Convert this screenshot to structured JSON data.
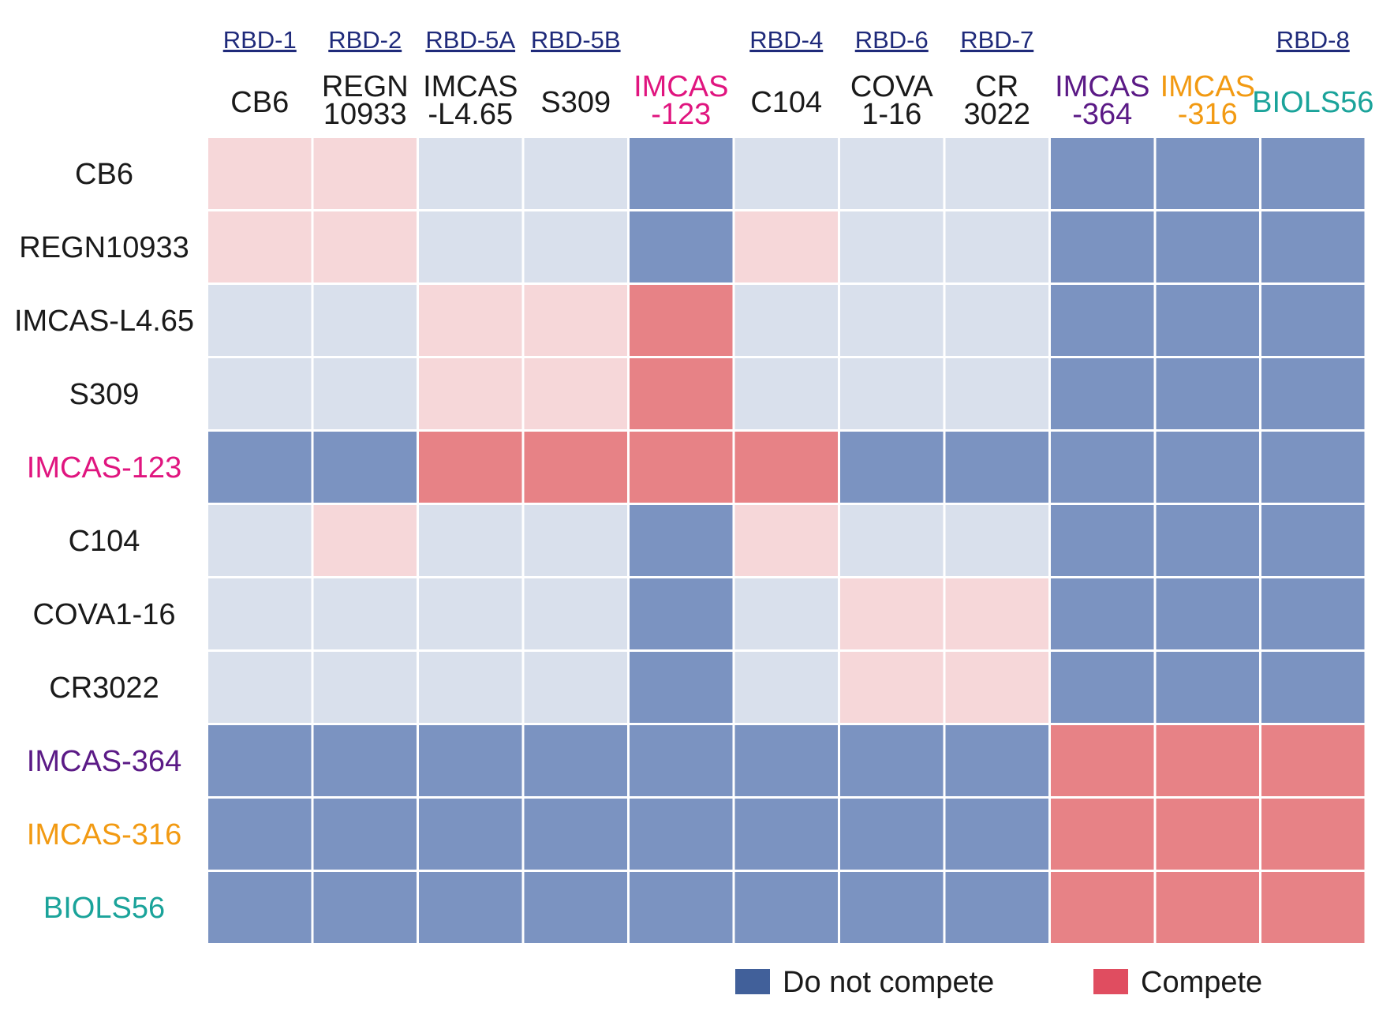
{
  "chart_data": {
    "type": "heatmap",
    "title": "",
    "xlabel": "",
    "ylabel": "",
    "epitopes": [
      {
        "label": "RBD-1",
        "column": 0
      },
      {
        "label": "RBD-2",
        "column": 1
      },
      {
        "label": "RBD-5A",
        "column": 2
      },
      {
        "label": "RBD-5B",
        "column": 3
      },
      {
        "label": "RBD-4",
        "column": 5
      },
      {
        "label": "RBD-6",
        "column": 6
      },
      {
        "label": "RBD-7",
        "column": 7
      },
      {
        "label": "RBD-8",
        "column": 10
      }
    ],
    "columns": [
      {
        "lines": [
          "CB6"
        ],
        "color": "#1a1a1a"
      },
      {
        "lines": [
          "REGN",
          "10933"
        ],
        "color": "#1a1a1a"
      },
      {
        "lines": [
          "IMCAS",
          "-L4.65"
        ],
        "color": "#1a1a1a"
      },
      {
        "lines": [
          "S309"
        ],
        "color": "#1a1a1a"
      },
      {
        "lines": [
          "IMCAS",
          "-123"
        ],
        "color": "#e0157f"
      },
      {
        "lines": [
          "C104"
        ],
        "color": "#1a1a1a"
      },
      {
        "lines": [
          "COVA",
          "1-16"
        ],
        "color": "#1a1a1a"
      },
      {
        "lines": [
          "CR",
          "3022"
        ],
        "color": "#1a1a1a"
      },
      {
        "lines": [
          "IMCAS",
          "-364"
        ],
        "color": "#5b1a86"
      },
      {
        "lines": [
          "IMCAS",
          "-316"
        ],
        "color": "#f29a12"
      },
      {
        "lines": [
          "BIOLS56"
        ],
        "color": "#1aa39a"
      }
    ],
    "rows": [
      {
        "label": "CB6",
        "color": "#1a1a1a"
      },
      {
        "label": "REGN10933",
        "color": "#1a1a1a"
      },
      {
        "label": "IMCAS-L4.65",
        "color": "#1a1a1a"
      },
      {
        "label": "S309",
        "color": "#1a1a1a"
      },
      {
        "label": "IMCAS-123",
        "color": "#e0157f"
      },
      {
        "label": "C104",
        "color": "#1a1a1a"
      },
      {
        "label": "COVA1-16",
        "color": "#1a1a1a"
      },
      {
        "label": "CR3022",
        "color": "#1a1a1a"
      },
      {
        "label": "IMCAS-364",
        "color": "#5b1a86"
      },
      {
        "label": "IMCAS-316",
        "color": "#f29a12"
      },
      {
        "label": "BIOLS56",
        "color": "#1aa39a"
      }
    ],
    "cell_values": [
      [
        "lc",
        "lc",
        "ln",
        "ln",
        "dn",
        "ln",
        "ln",
        "ln",
        "dn",
        "dn",
        "dn"
      ],
      [
        "lc",
        "lc",
        "ln",
        "ln",
        "dn",
        "lc",
        "ln",
        "ln",
        "dn",
        "dn",
        "dn"
      ],
      [
        "ln",
        "ln",
        "lc",
        "lc",
        "dc",
        "ln",
        "ln",
        "ln",
        "dn",
        "dn",
        "dn"
      ],
      [
        "ln",
        "ln",
        "lc",
        "lc",
        "dc",
        "ln",
        "ln",
        "ln",
        "dn",
        "dn",
        "dn"
      ],
      [
        "dn",
        "dn",
        "dc",
        "dc",
        "dc",
        "dc",
        "dn",
        "dn",
        "dn",
        "dn",
        "dn"
      ],
      [
        "ln",
        "lc",
        "ln",
        "ln",
        "dn",
        "lc",
        "ln",
        "ln",
        "dn",
        "dn",
        "dn"
      ],
      [
        "ln",
        "ln",
        "ln",
        "ln",
        "dn",
        "ln",
        "lc",
        "lc",
        "dn",
        "dn",
        "dn"
      ],
      [
        "ln",
        "ln",
        "ln",
        "ln",
        "dn",
        "ln",
        "lc",
        "lc",
        "dn",
        "dn",
        "dn"
      ],
      [
        "dn",
        "dn",
        "dn",
        "dn",
        "dn",
        "dn",
        "dn",
        "dn",
        "dc",
        "dc",
        "dc"
      ],
      [
        "dn",
        "dn",
        "dn",
        "dn",
        "dn",
        "dn",
        "dn",
        "dn",
        "dc",
        "dc",
        "dc"
      ],
      [
        "dn",
        "dn",
        "dn",
        "dn",
        "dn",
        "dn",
        "dn",
        "dn",
        "dc",
        "dc",
        "dc"
      ]
    ],
    "cell_colors": {
      "dn": "#7b93c1",
      "ln": "#d9e0ec",
      "dc": "#e78286",
      "lc": "#f6d7d9"
    },
    "legend": {
      "placement": "bottom",
      "items": [
        {
          "label": "Do not compete",
          "color": "#41609a"
        },
        {
          "label": "Compete",
          "color": "#e04d60"
        }
      ]
    },
    "epitope_color": "#1f2a7a"
  }
}
